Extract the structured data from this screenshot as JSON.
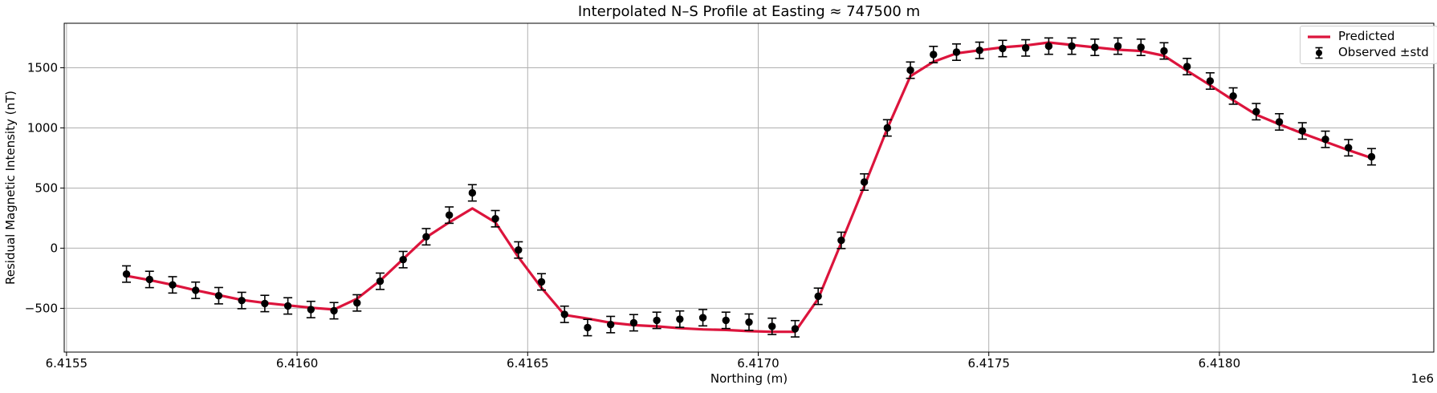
{
  "chart_data": {
    "type": "line",
    "title": "Interpolated N–S Profile at Easting ≈ 747500 m",
    "xlabel": "Northing (m)",
    "ylabel": "Residual Magnetic Intensity (nT)",
    "x_offset_label": "1e6",
    "xlim": [
      6415495,
      6418465
    ],
    "ylim": [
      -864,
      1870
    ],
    "x_ticks": [
      6415500,
      6416000,
      6416500,
      6417000,
      6417500,
      6418000
    ],
    "x_tick_labels": [
      "6.4155",
      "6.4160",
      "6.4165",
      "6.4170",
      "6.4175",
      "6.4180"
    ],
    "y_ticks": [
      -500,
      0,
      500,
      1000,
      1500
    ],
    "y_tick_labels": [
      "−500",
      "0",
      "500",
      "1000",
      "1500"
    ],
    "grid": true,
    "grid_color": "#b0b0b0",
    "background_color": "#ffffff",
    "legend_position": "upper right",
    "legend": [
      {
        "label": "Predicted",
        "glyph": "line",
        "color": "#dc143c"
      },
      {
        "label": "Observed ±std",
        "glyph": "errorbar",
        "color": "#000000"
      }
    ],
    "x": [
      6415630,
      6415680,
      6415730,
      6415780,
      6415830,
      6415880,
      6415930,
      6415980,
      6416030,
      6416080,
      6416130,
      6416180,
      6416230,
      6416280,
      6416330,
      6416380,
      6416430,
      6416480,
      6416530,
      6416580,
      6416630,
      6416680,
      6416730,
      6416780,
      6416830,
      6416880,
      6416930,
      6416980,
      6417030,
      6417080,
      6417130,
      6417180,
      6417230,
      6417280,
      6417330,
      6417380,
      6417430,
      6417480,
      6417530,
      6417580,
      6417630,
      6417680,
      6417730,
      6417780,
      6417830,
      6417880,
      6417930,
      6417980,
      6418030,
      6418080,
      6418130,
      6418180,
      6418230,
      6418280,
      6418330
    ],
    "series": [
      {
        "name": "Predicted",
        "type": "line",
        "color": "#dc143c",
        "values": [
          -230,
          -265,
          -305,
          -350,
          -390,
          -430,
          -455,
          -475,
          -495,
          -510,
          -420,
          -270,
          -90,
          90,
          215,
          330,
          215,
          -75,
          -330,
          -555,
          -585,
          -620,
          -640,
          -650,
          -665,
          -675,
          -680,
          -690,
          -695,
          -695,
          -420,
          45,
          515,
          995,
          1430,
          1550,
          1620,
          1645,
          1670,
          1685,
          1710,
          1690,
          1670,
          1650,
          1640,
          1600,
          1475,
          1355,
          1230,
          1110,
          1030,
          955,
          885,
          815,
          750
        ]
      },
      {
        "name": "Observed ±std",
        "type": "errorbar",
        "color": "#000000",
        "std": 68,
        "values": [
          -215,
          -260,
          -305,
          -350,
          -395,
          -435,
          -460,
          -480,
          -510,
          -520,
          -455,
          -275,
          -95,
          95,
          275,
          460,
          245,
          -15,
          -280,
          -550,
          -660,
          -635,
          -620,
          -600,
          -590,
          -578,
          -600,
          -615,
          -650,
          -670,
          -400,
          65,
          550,
          1000,
          1480,
          1610,
          1630,
          1645,
          1660,
          1665,
          1680,
          1680,
          1670,
          1680,
          1670,
          1640,
          1510,
          1390,
          1265,
          1135,
          1050,
          975,
          905,
          835,
          760
        ]
      }
    ]
  }
}
